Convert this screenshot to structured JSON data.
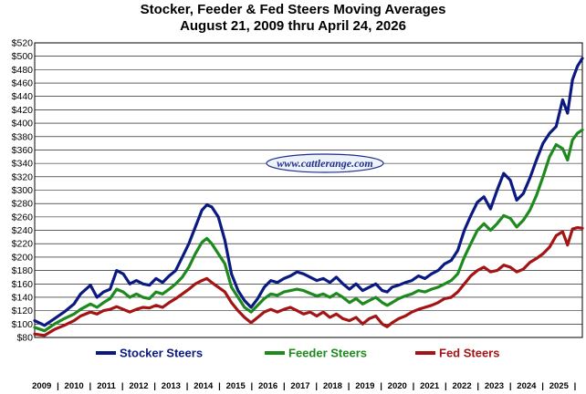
{
  "title_line1": "Stocker, Feeder & Fed Steers Moving Averages",
  "title_line2": "August 21, 2009 thru April 24, 2026",
  "watermark": "www.cattlerange.com",
  "colors": {
    "title": "#6b1414",
    "grid": "#000000",
    "background": "#ffffff"
  },
  "chart_data": {
    "type": "line",
    "title": "Stocker, Feeder & Fed Steers Moving Averages",
    "subtitle": "August 21, 2009 thru April 24, 2026",
    "ylim": [
      80,
      520
    ],
    "y_ticks": [
      "$80",
      "$100",
      "$120",
      "$140",
      "$160",
      "$180",
      "$200",
      "$220",
      "$240",
      "$260",
      "$280",
      "$300",
      "$320",
      "$340",
      "$360",
      "$380",
      "$400",
      "$420",
      "$440",
      "$460",
      "$480",
      "$500",
      "$520"
    ],
    "x_range": [
      2009.6,
      2026.3
    ],
    "x_categories": [
      "2009",
      "2010",
      "2011",
      "2012",
      "2013",
      "2014",
      "2015",
      "2016",
      "2017",
      "2018",
      "2019",
      "2020",
      "2021",
      "2022",
      "2023",
      "2024",
      "2025"
    ],
    "grid": true,
    "legend_position": "bottom",
    "series": [
      {
        "name": "Stocker Steers",
        "color": "#0b1a80",
        "x": [
          2009.6,
          2009.9,
          2010.2,
          2010.5,
          2010.8,
          2011.0,
          2011.3,
          2011.5,
          2011.7,
          2011.9,
          2012.1,
          2012.3,
          2012.5,
          2012.7,
          2012.9,
          2013.1,
          2013.3,
          2013.5,
          2013.7,
          2013.9,
          2014.1,
          2014.3,
          2014.5,
          2014.7,
          2014.85,
          2015.0,
          2015.2,
          2015.4,
          2015.6,
          2015.8,
          2016.0,
          2016.2,
          2016.4,
          2016.6,
          2016.8,
          2017.0,
          2017.2,
          2017.4,
          2017.6,
          2017.8,
          2018.0,
          2018.2,
          2018.4,
          2018.6,
          2018.8,
          2019.0,
          2019.2,
          2019.4,
          2019.6,
          2019.8,
          2020.0,
          2020.2,
          2020.35,
          2020.5,
          2020.7,
          2020.9,
          2021.1,
          2021.3,
          2021.5,
          2021.7,
          2021.9,
          2022.1,
          2022.3,
          2022.5,
          2022.7,
          2022.9,
          2023.1,
          2023.3,
          2023.5,
          2023.7,
          2023.9,
          2024.1,
          2024.3,
          2024.5,
          2024.7,
          2024.9,
          2025.1,
          2025.3,
          2025.5,
          2025.7,
          2025.85,
          2026.0,
          2026.15,
          2026.3
        ],
        "values": [
          105,
          98,
          108,
          118,
          130,
          145,
          158,
          140,
          148,
          152,
          180,
          175,
          160,
          165,
          160,
          158,
          168,
          162,
          172,
          180,
          200,
          220,
          245,
          270,
          278,
          275,
          260,
          225,
          175,
          150,
          135,
          125,
          138,
          155,
          165,
          162,
          168,
          172,
          178,
          175,
          170,
          165,
          168,
          162,
          170,
          160,
          152,
          160,
          150,
          155,
          160,
          150,
          148,
          155,
          158,
          162,
          165,
          172,
          168,
          175,
          180,
          190,
          195,
          210,
          240,
          262,
          282,
          290,
          272,
          300,
          325,
          315,
          285,
          295,
          318,
          345,
          370,
          385,
          395,
          435,
          415,
          465,
          485,
          497
        ]
      },
      {
        "name": "Feeder Steers",
        "color": "#1e8a1e",
        "x": [
          2009.6,
          2009.9,
          2010.2,
          2010.5,
          2010.8,
          2011.0,
          2011.3,
          2011.5,
          2011.7,
          2011.9,
          2012.1,
          2012.3,
          2012.5,
          2012.7,
          2012.9,
          2013.1,
          2013.3,
          2013.5,
          2013.7,
          2013.9,
          2014.1,
          2014.3,
          2014.5,
          2014.7,
          2014.85,
          2015.0,
          2015.2,
          2015.4,
          2015.6,
          2015.8,
          2016.0,
          2016.2,
          2016.4,
          2016.6,
          2016.8,
          2017.0,
          2017.2,
          2017.4,
          2017.6,
          2017.8,
          2018.0,
          2018.2,
          2018.4,
          2018.6,
          2018.8,
          2019.0,
          2019.2,
          2019.4,
          2019.6,
          2019.8,
          2020.0,
          2020.2,
          2020.35,
          2020.5,
          2020.7,
          2020.9,
          2021.1,
          2021.3,
          2021.5,
          2021.7,
          2021.9,
          2022.1,
          2022.3,
          2022.5,
          2022.7,
          2022.9,
          2023.1,
          2023.3,
          2023.5,
          2023.7,
          2023.9,
          2024.1,
          2024.3,
          2024.5,
          2024.7,
          2024.9,
          2025.1,
          2025.3,
          2025.5,
          2025.7,
          2025.85,
          2026.0,
          2026.15,
          2026.3
        ],
        "values": [
          95,
          90,
          100,
          108,
          115,
          122,
          130,
          125,
          132,
          138,
          152,
          148,
          140,
          145,
          140,
          138,
          148,
          145,
          152,
          160,
          170,
          185,
          205,
          222,
          228,
          220,
          205,
          190,
          155,
          140,
          125,
          118,
          128,
          138,
          145,
          143,
          148,
          150,
          152,
          150,
          146,
          142,
          145,
          140,
          146,
          140,
          132,
          138,
          130,
          135,
          140,
          132,
          128,
          132,
          138,
          142,
          145,
          150,
          148,
          152,
          155,
          160,
          165,
          175,
          200,
          220,
          240,
          250,
          240,
          250,
          262,
          258,
          245,
          255,
          270,
          292,
          320,
          350,
          368,
          362,
          345,
          375,
          385,
          390
        ]
      },
      {
        "name": "Fed Steers",
        "color": "#a51414",
        "x": [
          2009.6,
          2009.9,
          2010.2,
          2010.5,
          2010.8,
          2011.0,
          2011.3,
          2011.5,
          2011.7,
          2011.9,
          2012.1,
          2012.3,
          2012.5,
          2012.7,
          2012.9,
          2013.1,
          2013.3,
          2013.5,
          2013.7,
          2013.9,
          2014.1,
          2014.3,
          2014.5,
          2014.7,
          2014.85,
          2015.0,
          2015.2,
          2015.4,
          2015.6,
          2015.8,
          2016.0,
          2016.2,
          2016.4,
          2016.6,
          2016.8,
          2017.0,
          2017.2,
          2017.4,
          2017.6,
          2017.8,
          2018.0,
          2018.2,
          2018.4,
          2018.6,
          2018.8,
          2019.0,
          2019.2,
          2019.4,
          2019.6,
          2019.8,
          2020.0,
          2020.2,
          2020.35,
          2020.5,
          2020.7,
          2020.9,
          2021.1,
          2021.3,
          2021.5,
          2021.7,
          2021.9,
          2022.1,
          2022.3,
          2022.5,
          2022.7,
          2022.9,
          2023.1,
          2023.3,
          2023.5,
          2023.7,
          2023.9,
          2024.1,
          2024.3,
          2024.5,
          2024.7,
          2024.9,
          2025.1,
          2025.3,
          2025.5,
          2025.7,
          2025.85,
          2026.0,
          2026.15,
          2026.3
        ],
        "values": [
          85,
          83,
          92,
          98,
          105,
          112,
          118,
          115,
          120,
          122,
          126,
          122,
          118,
          122,
          125,
          124,
          128,
          125,
          132,
          138,
          145,
          152,
          160,
          165,
          168,
          162,
          155,
          148,
          132,
          120,
          110,
          102,
          110,
          118,
          122,
          118,
          122,
          125,
          120,
          115,
          118,
          112,
          118,
          110,
          115,
          108,
          105,
          110,
          100,
          108,
          112,
          100,
          96,
          102,
          108,
          112,
          118,
          122,
          125,
          128,
          132,
          138,
          140,
          148,
          160,
          172,
          180,
          185,
          178,
          180,
          188,
          185,
          178,
          182,
          192,
          198,
          205,
          215,
          232,
          238,
          218,
          242,
          244,
          243
        ]
      }
    ]
  }
}
